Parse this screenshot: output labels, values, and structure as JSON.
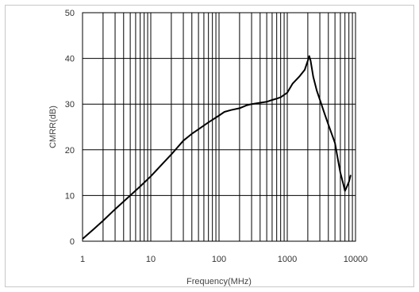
{
  "chart_data": {
    "type": "line",
    "title": "",
    "xlabel": "Frequency(MHz)",
    "ylabel": "CMRR(dB)",
    "xscale": "log",
    "xlim": [
      1,
      10000
    ],
    "ylim": [
      0,
      50
    ],
    "x_ticks": [
      1,
      10,
      100,
      1000,
      10000
    ],
    "x_tick_labels": [
      "1",
      "10",
      "100",
      "1000",
      "10000"
    ],
    "y_ticks": [
      0,
      10,
      20,
      30,
      40,
      50
    ],
    "y_tick_labels": [
      "0",
      "10",
      "20",
      "30",
      "40",
      "50"
    ],
    "grid": true,
    "colors": {
      "line": "#000000",
      "grid": "#000000",
      "frame": "#c8c8c8"
    },
    "series": [
      {
        "x": [
          1,
          1.5,
          2,
          3,
          5,
          7,
          10,
          15,
          20,
          30,
          40,
          50,
          70,
          100,
          120,
          150,
          200,
          250,
          300,
          400,
          500,
          600,
          700,
          800,
          1000,
          1200,
          1500,
          1800,
          2000,
          2100,
          2200,
          2400,
          2700,
          3000,
          3500,
          4000,
          5000,
          5500,
          6000,
          6500,
          7000,
          7500,
          8000,
          8500
        ],
        "y": [
          0.5,
          2.8,
          4.5,
          7.0,
          10.0,
          12.0,
          14.2,
          17.0,
          19.0,
          22.0,
          23.5,
          24.5,
          26.0,
          27.5,
          28.3,
          28.7,
          29.1,
          29.7,
          30.0,
          30.3,
          30.5,
          30.9,
          31.2,
          31.5,
          32.5,
          34.5,
          36.0,
          37.5,
          39.5,
          40.5,
          39.5,
          36.0,
          33.0,
          31.0,
          28.0,
          25.5,
          21.5,
          18.0,
          15.0,
          13.0,
          11.0,
          12.0,
          13.0,
          14.5
        ]
      }
    ]
  }
}
